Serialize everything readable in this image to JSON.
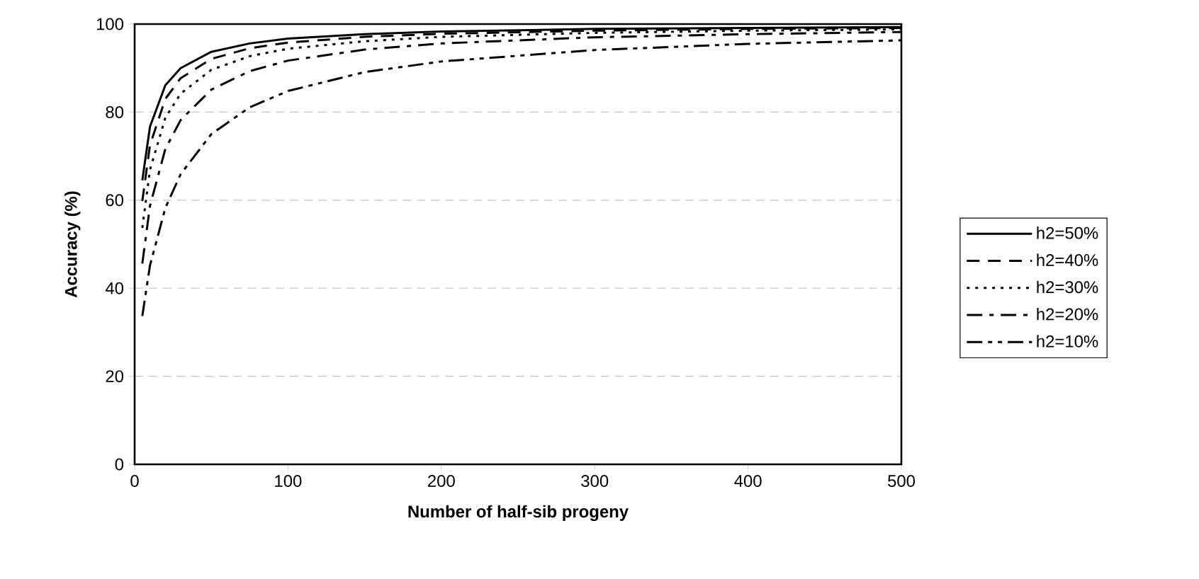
{
  "chart_data": {
    "type": "line",
    "xlabel": "Number of half-sib progeny",
    "ylabel": "Accuracy (%)",
    "x": [
      5,
      10,
      20,
      30,
      50,
      75,
      100,
      150,
      200,
      300,
      400,
      500
    ],
    "series": [
      {
        "name": "h2=50%",
        "color": "#000000",
        "line_style": "solid",
        "values": [
          64.5,
          76.7,
          86.1,
          90.0,
          93.7,
          95.6,
          96.7,
          97.7,
          98.3,
          98.9,
          99.1,
          99.3
        ]
      },
      {
        "name": "h2=40%",
        "color": "#000000",
        "line_style": "dashed",
        "values": [
          59.8,
          72.5,
          83.0,
          87.7,
          92.1,
          94.5,
          95.8,
          97.1,
          97.8,
          98.5,
          98.9,
          99.1
        ]
      },
      {
        "name": "h2=30%",
        "color": "#000000",
        "line_style": "dotted",
        "values": [
          53.7,
          66.9,
          78.7,
          84.2,
          89.6,
          92.7,
          94.4,
          96.1,
          97.1,
          98.0,
          98.5,
          98.8
        ]
      },
      {
        "name": "h2=20%",
        "color": "#000000",
        "line_style": "dashdot",
        "values": [
          45.6,
          58.7,
          71.6,
          78.2,
          85.1,
          89.3,
          91.7,
          94.2,
          95.6,
          97.0,
          97.7,
          98.2
        ]
      },
      {
        "name": "h2=10%",
        "color": "#000000",
        "line_style": "dashdotdot",
        "values": [
          33.7,
          45.2,
          58.2,
          65.9,
          75.0,
          81.1,
          84.8,
          89.1,
          91.5,
          94.1,
          95.5,
          96.3
        ]
      }
    ],
    "xlim": [
      0,
      500
    ],
    "ylim": [
      0,
      100
    ],
    "xticks": [
      0,
      100,
      200,
      300,
      400,
      500
    ],
    "yticks": [
      0,
      20,
      40,
      60,
      80,
      100
    ],
    "grid": "y",
    "legend": "right"
  }
}
